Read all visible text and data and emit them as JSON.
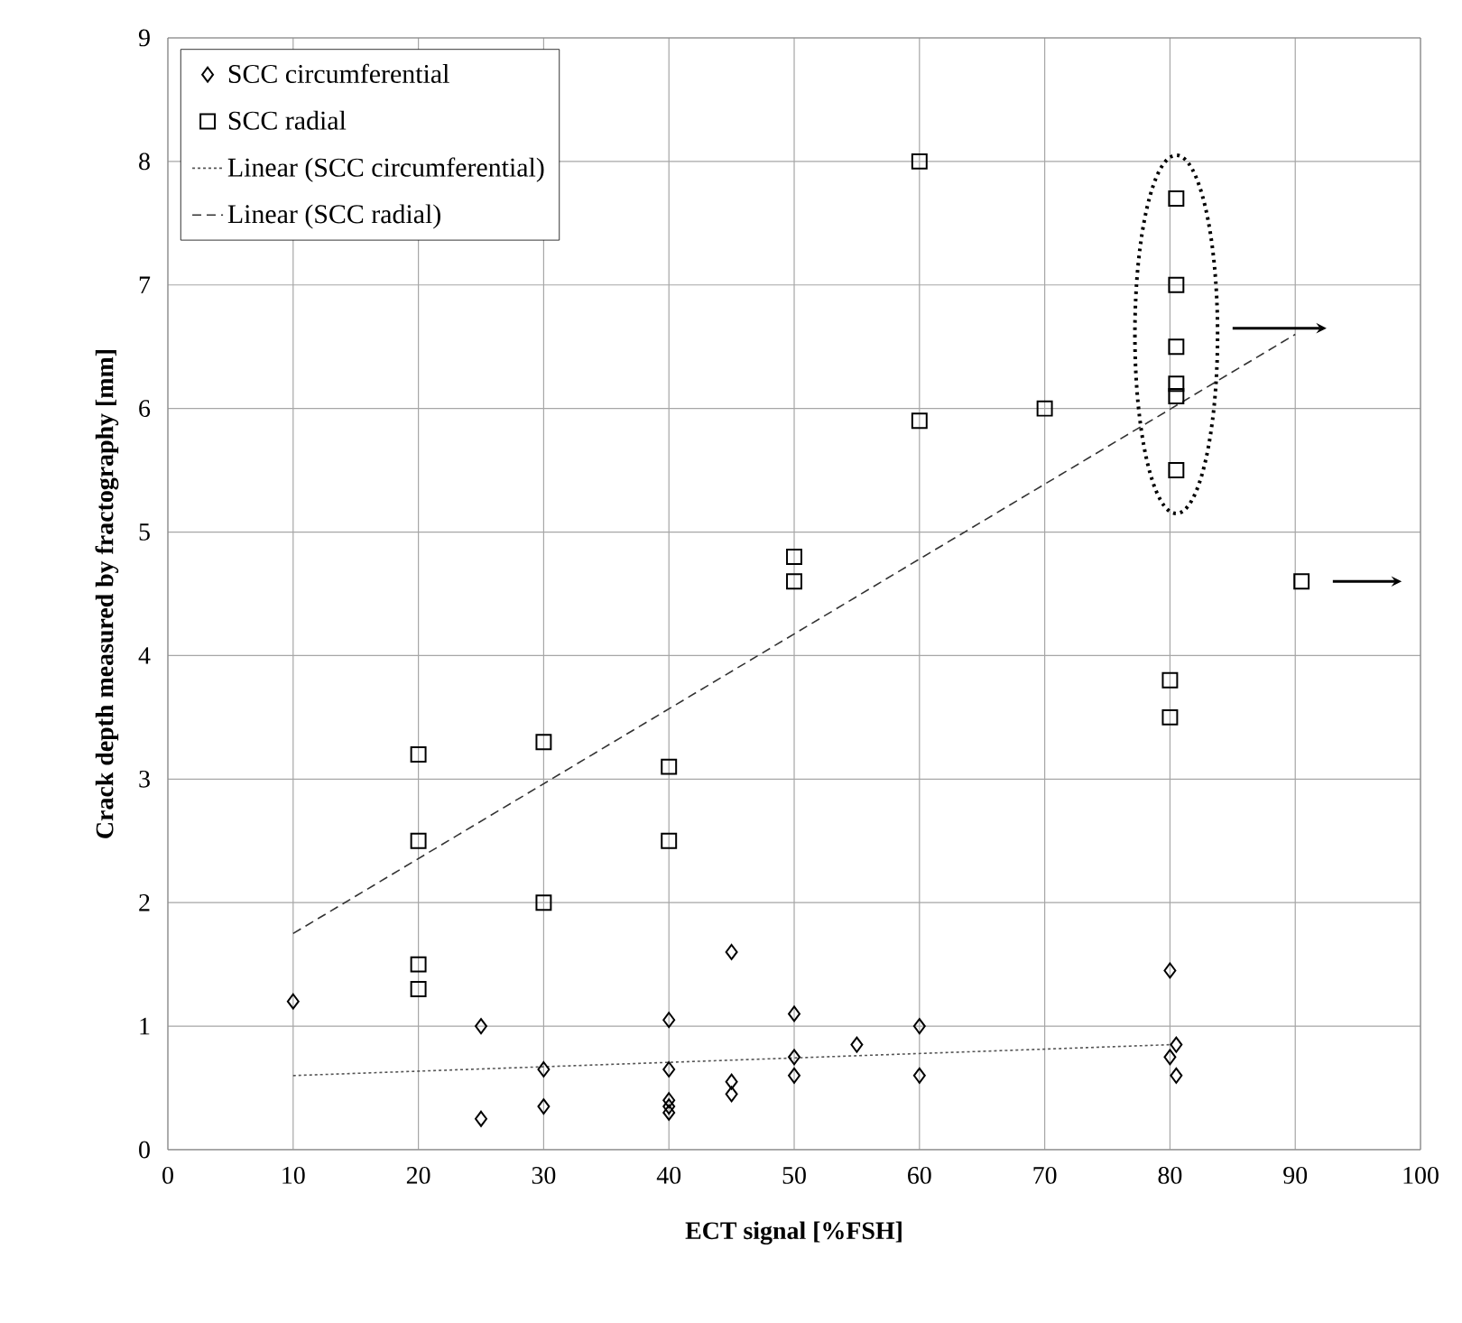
{
  "chart_data": {
    "type": "scatter",
    "xlabel": "ECT signal [%FSH]",
    "ylabel": "Crack depth measured by fractography [mm]",
    "xlim": [
      0,
      100
    ],
    "ylim": [
      0,
      9
    ],
    "xticks": [
      0,
      10,
      20,
      30,
      40,
      50,
      60,
      70,
      80,
      90,
      100
    ],
    "yticks": [
      0,
      1,
      2,
      3,
      4,
      5,
      6,
      7,
      8,
      9
    ],
    "grid": true,
    "legend": "top left",
    "series": [
      {
        "name": "SCC circumferential",
        "marker": "diamond",
        "color": "#000000",
        "x": [
          10,
          25,
          25,
          30,
          30,
          40,
          40,
          40,
          40,
          40,
          45,
          45,
          45,
          50,
          50,
          50,
          55,
          60,
          60,
          80,
          80,
          80.5,
          80.5
        ],
        "values": [
          1.2,
          1.0,
          0.25,
          0.65,
          0.35,
          1.05,
          0.65,
          0.4,
          0.35,
          0.3,
          1.6,
          0.55,
          0.45,
          1.1,
          0.75,
          0.6,
          0.85,
          1.0,
          0.6,
          1.45,
          0.75,
          0.85,
          0.6
        ]
      },
      {
        "name": "SCC radial",
        "marker": "square",
        "color": "#000000",
        "x": [
          20,
          20,
          20,
          20,
          30,
          30,
          40,
          40,
          50,
          50,
          60,
          60,
          70,
          80.5,
          80.5,
          80.5,
          80.5,
          80.5,
          80.5,
          80,
          80,
          90.5
        ],
        "values": [
          3.2,
          2.5,
          1.5,
          1.3,
          3.3,
          2.0,
          3.1,
          2.5,
          4.8,
          4.6,
          8.0,
          5.9,
          6.0,
          7.7,
          7.0,
          6.5,
          6.2,
          6.1,
          5.5,
          3.8,
          3.5,
          4.6
        ]
      },
      {
        "name": "Linear (SCC circumferential)",
        "type": "line",
        "line_style": "dotted",
        "color": "#555555",
        "x": [
          10,
          80
        ],
        "values": [
          0.6,
          0.85
        ]
      },
      {
        "name": "Linear (SCC radial)",
        "type": "line",
        "line_style": "dashed",
        "color": "#333333",
        "x": [
          10,
          90
        ],
        "values": [
          1.75,
          6.6
        ]
      }
    ]
  }
}
